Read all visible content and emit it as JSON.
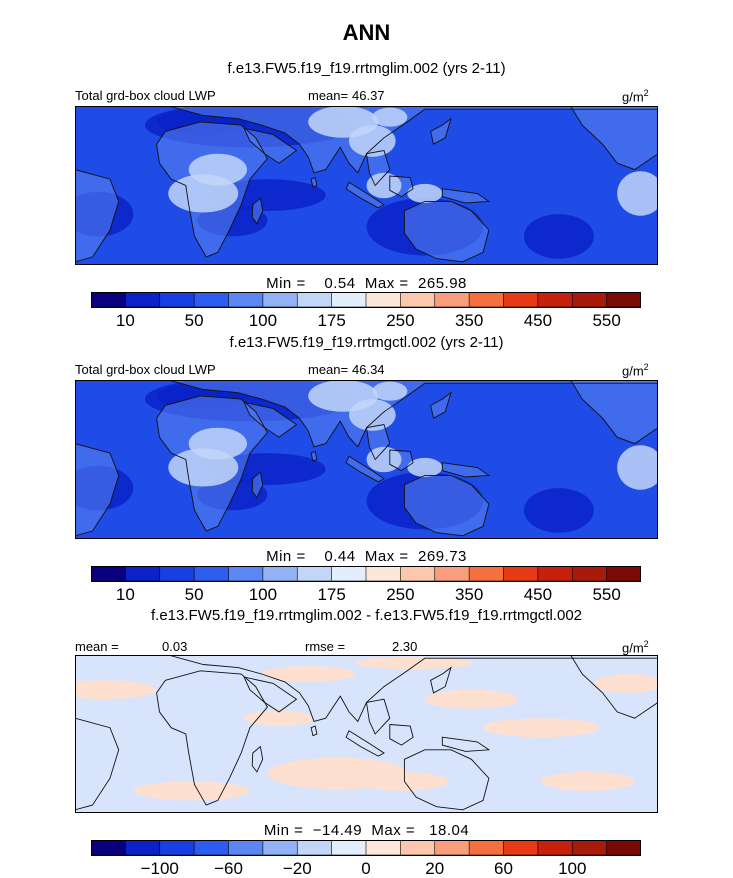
{
  "title": "ANN",
  "colors": {
    "ocean_top": "#1f4be6",
    "ocean_diff": "#d7e4fb",
    "pos_diff": "#fde0d0",
    "coast": "#111111",
    "scale": [
      "#08007f",
      "#0a22c7",
      "#173fe4",
      "#2d5cf0",
      "#5b86f3",
      "#92b2f5",
      "#c2d6f8",
      "#e3eefd",
      "#fde7da",
      "#fbc8ad",
      "#f89e7c",
      "#f5703f",
      "#e73b16",
      "#c7200c",
      "#a81a0a",
      "#7a0a05"
    ]
  },
  "chart_data": [
    {
      "type": "heatmap",
      "case": "f.e13.FW5.f19_f19.rrtmglim.002 (yrs 2-11)",
      "field": "Total grd-box cloud LWP",
      "units": "g/m2",
      "mean_label": "mean=",
      "mean": "46.37",
      "stats_text": "Min =    0.54  Max =  265.98",
      "min": 0.54,
      "max": 265.98,
      "colorbar_ticks": [
        "10",
        "50",
        "100",
        "175",
        "250",
        "350",
        "450",
        "550"
      ]
    },
    {
      "type": "heatmap",
      "case": "f.e13.FW5.f19_f19.rrtmgctl.002 (yrs 2-11)",
      "field": "Total grd-box cloud LWP",
      "units": "g/m2",
      "mean_label": "mean=",
      "mean": "46.34",
      "stats_text": "Min =    0.44  Max =  269.73",
      "min": 0.44,
      "max": 269.73,
      "colorbar_ticks": [
        "10",
        "50",
        "100",
        "175",
        "250",
        "350",
        "450",
        "550"
      ]
    },
    {
      "type": "heatmap",
      "case": "f.e13.FW5.f19_f19.rrtmglim.002 - f.e13.FW5.f19_f19.rrtmgctl.002",
      "units": "g/m2",
      "mean_label": "mean =",
      "mean": "0.03",
      "rmse_label": "rmse =",
      "rmse": "2.30",
      "stats_text": "Min =  −14.49  Max =   18.04",
      "min": -14.49,
      "max": 18.04,
      "colorbar_ticks": [
        "−100",
        "−60",
        "−20",
        "0",
        "20",
        "60",
        "100"
      ]
    }
  ]
}
